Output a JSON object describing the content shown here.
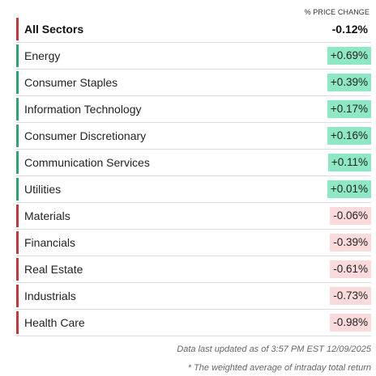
{
  "header": {
    "column_label": "% PRICE CHANGE"
  },
  "colors": {
    "positive_bar": "#2aa771",
    "negative_bar": "#c8373b",
    "positive_bg": "#8ee8c4",
    "negative_bg": "#fadadb"
  },
  "total": {
    "name": "All Sectors",
    "change": "-0.12%",
    "direction": "down"
  },
  "sectors": [
    {
      "name": "Energy",
      "change": "+0.69%",
      "direction": "up",
      "intensity": 1.0
    },
    {
      "name": "Consumer Staples",
      "change": "+0.39%",
      "direction": "up",
      "intensity": 0.85
    },
    {
      "name": "Information Technology",
      "change": "+0.17%",
      "direction": "up",
      "intensity": 0.7
    },
    {
      "name": "Consumer Discretionary",
      "change": "+0.16%",
      "direction": "up",
      "intensity": 0.7
    },
    {
      "name": "Communication Services",
      "change": "+0.11%",
      "direction": "up",
      "intensity": 0.65
    },
    {
      "name": "Utilities",
      "change": "+0.01%",
      "direction": "up",
      "intensity": 0.55
    },
    {
      "name": "Materials",
      "change": "-0.06%",
      "direction": "down",
      "intensity": 0.6
    },
    {
      "name": "Financials",
      "change": "-0.39%",
      "direction": "down",
      "intensity": 0.7
    },
    {
      "name": "Real Estate",
      "change": "-0.61%",
      "direction": "down",
      "intensity": 0.75
    },
    {
      "name": "Industrials",
      "change": "-0.73%",
      "direction": "down",
      "intensity": 0.8
    },
    {
      "name": "Health Care",
      "change": "-0.98%",
      "direction": "down",
      "intensity": 0.85
    }
  ],
  "footer": {
    "updated": "Data last updated as of 3:57 PM EST 12/09/2025",
    "note": "* The weighted average of intraday total return"
  }
}
